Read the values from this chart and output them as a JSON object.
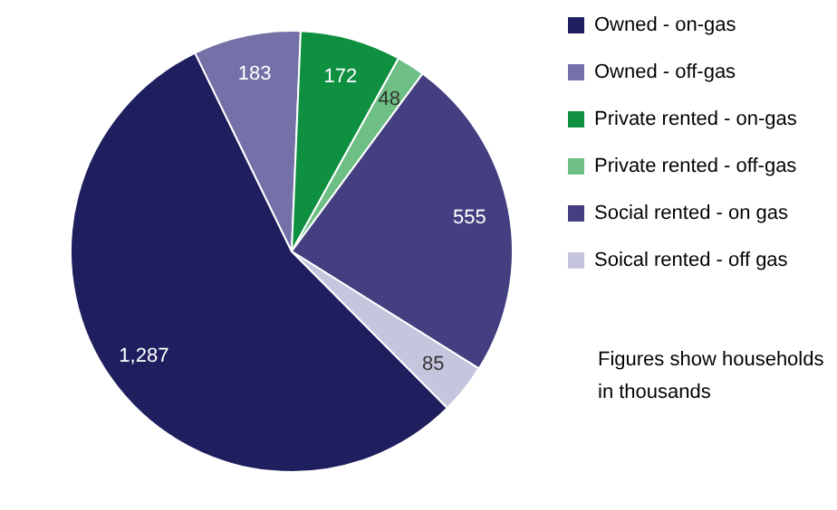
{
  "chart_data": {
    "type": "pie",
    "categories": [
      "Owned - on-gas",
      "Owned - off-gas",
      "Private rented - on-gas",
      "Private rented - off-gas",
      "Social rented - on gas",
      "Soical rented - off gas"
    ],
    "values": [
      1287,
      183,
      172,
      48,
      555,
      85
    ],
    "colors": [
      "#1f1f5f",
      "#7470a8",
      "#0e9040",
      "#6dbf85",
      "#433f80",
      "#c6c5de"
    ],
    "value_labels": [
      "1,287",
      "183",
      "172",
      "48",
      "555",
      "85"
    ],
    "legend": "right",
    "annotations": [
      "Figures show households in thousands"
    ]
  }
}
